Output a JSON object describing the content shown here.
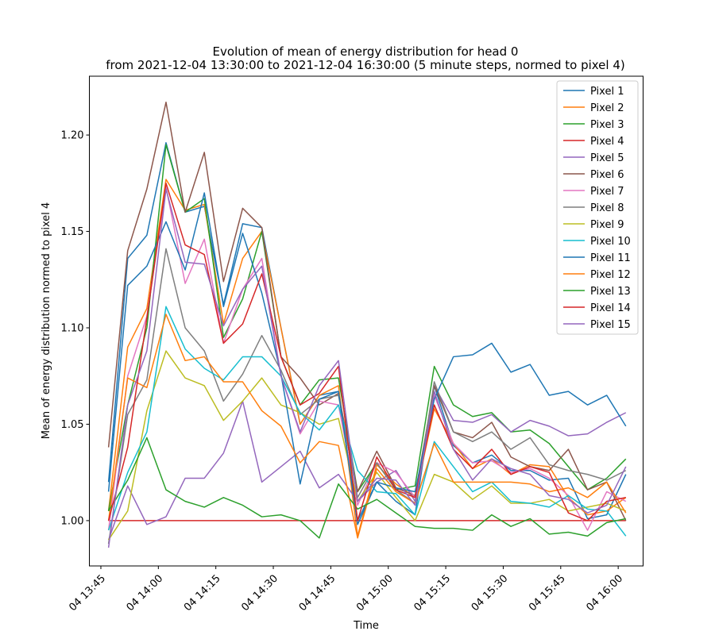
{
  "chart_data": {
    "type": "line",
    "title": "Evolution of mean of energy distribution for head 0",
    "subtitle": "from 2021-12-04 13:30:00 to 2021-12-04 16:30:00 (5 minute steps, normed to pixel 4)",
    "xlabel": "Time",
    "ylabel": "Mean of energy distribution normed to pixel 4",
    "x_unit": "minutes after 2021-12-04 13:30",
    "x": [
      17,
      22,
      27,
      32,
      37,
      42,
      47,
      52,
      57,
      62,
      67,
      72,
      77,
      82,
      87,
      92,
      97,
      102,
      107,
      112,
      117,
      122,
      127,
      132,
      137,
      142,
      147,
      152
    ],
    "xlim": [
      12,
      156.5
    ],
    "ylim": [
      0.9765,
      1.2305
    ],
    "xticks": [
      15,
      30,
      45,
      60,
      75,
      90,
      105,
      120,
      135,
      150
    ],
    "xtick_labels": [
      "04 13:45",
      "04 14:00",
      "04 14:15",
      "04 14:30",
      "04 14:45",
      "04 15:00",
      "04 15:15",
      "04 15:30",
      "04 15:45",
      "04 16:00"
    ],
    "yticks": [
      1.0,
      1.05,
      1.1,
      1.15,
      1.2
    ],
    "ytick_labels": [
      "1.00",
      "1.05",
      "1.10",
      "1.15",
      "1.20"
    ],
    "grid": false,
    "legend_position": "upper right",
    "series": [
      {
        "name": "Pixel 1",
        "color": "#1f77b4",
        "values": [
          1.02,
          1.136,
          1.148,
          1.196,
          1.16,
          1.163,
          1.112,
          1.154,
          1.152,
          1.1,
          1.05,
          1.065,
          1.067,
          1.0,
          1.02,
          1.01,
          1.003,
          1.07,
          1.039,
          1.03,
          1.034,
          1.026,
          1.026,
          1.021,
          1.022,
          1.001,
          1.003,
          1.024
        ]
      },
      {
        "name": "Pixel 2",
        "color": "#ff7f0e",
        "values": [
          1.005,
          1.09,
          1.11,
          1.177,
          1.161,
          1.164,
          1.102,
          1.136,
          1.15,
          1.1,
          1.05,
          1.065,
          1.07,
          0.992,
          1.029,
          1.019,
          1.012,
          1.058,
          1.04,
          1.027,
          1.032,
          1.024,
          1.029,
          1.028,
          1.012,
          1.003,
          1.005,
          1.012
        ]
      },
      {
        "name": "Pixel 3",
        "color": "#2ca02c",
        "values": [
          1.005,
          1.06,
          1.1,
          1.195,
          1.16,
          1.167,
          1.095,
          1.115,
          1.15,
          1.085,
          1.06,
          1.073,
          1.074,
          1.015,
          1.03,
          1.016,
          1.018,
          1.08,
          1.06,
          1.054,
          1.056,
          1.046,
          1.047,
          1.04,
          1.028,
          1.016,
          1.022,
          1.032
        ]
      },
      {
        "name": "Pixel 4",
        "color": "#d62728",
        "values": [
          1.0,
          1.0,
          1.0,
          1.0,
          1.0,
          1.0,
          1.0,
          1.0,
          1.0,
          1.0,
          1.0,
          1.0,
          1.0,
          1.0,
          1.0,
          1.0,
          1.0,
          1.0,
          1.0,
          1.0,
          1.0,
          1.0,
          1.0,
          1.0,
          1.0,
          1.0,
          1.0,
          1.0
        ]
      },
      {
        "name": "Pixel 5",
        "color": "#9467bd",
        "values": [
          0.99,
          1.018,
          0.998,
          1.002,
          1.022,
          1.022,
          1.035,
          1.062,
          1.02,
          1.028,
          1.036,
          1.017,
          1.024,
          1.01,
          1.02,
          1.026,
          1.01,
          1.07,
          1.052,
          1.051,
          1.055,
          1.046,
          1.052,
          1.049,
          1.044,
          1.045,
          1.051,
          1.056
        ]
      },
      {
        "name": "Pixel 6",
        "color": "#8c564b",
        "values": [
          1.038,
          1.14,
          1.172,
          1.217,
          1.16,
          1.191,
          1.124,
          1.162,
          1.152,
          1.085,
          1.074,
          1.06,
          1.066,
          1.015,
          1.036,
          1.017,
          1.013,
          1.07,
          1.046,
          1.043,
          1.051,
          1.033,
          1.028,
          1.026,
          1.037,
          1.016,
          1.02,
          1.0
        ]
      },
      {
        "name": "Pixel 7",
        "color": "#e377c2",
        "values": [
          0.995,
          1.075,
          1.106,
          1.173,
          1.123,
          1.146,
          1.092,
          1.12,
          1.136,
          1.075,
          1.045,
          1.062,
          1.06,
          1.008,
          1.03,
          1.025,
          1.012,
          1.065,
          1.04,
          1.03,
          1.031,
          1.025,
          1.027,
          1.022,
          1.013,
          0.995,
          1.015,
          1.01
        ]
      },
      {
        "name": "Pixel 8",
        "color": "#7f7f7f",
        "values": [
          0.988,
          1.055,
          1.073,
          1.141,
          1.1,
          1.088,
          1.062,
          1.076,
          1.096,
          1.078,
          1.055,
          1.063,
          1.065,
          1.012,
          1.03,
          1.016,
          1.009,
          1.072,
          1.046,
          1.041,
          1.046,
          1.037,
          1.043,
          1.029,
          1.026,
          1.024,
          1.021,
          1.026
        ]
      },
      {
        "name": "Pixel 9",
        "color": "#bcbd22",
        "values": [
          0.99,
          1.005,
          1.057,
          1.088,
          1.074,
          1.07,
          1.052,
          1.062,
          1.074,
          1.06,
          1.056,
          1.05,
          1.053,
          1.01,
          1.025,
          1.012,
          1.0,
          1.024,
          1.02,
          1.011,
          1.018,
          1.009,
          1.009,
          1.011,
          1.005,
          1.007,
          1.009,
          1.005
        ]
      },
      {
        "name": "Pixel 10",
        "color": "#17becf",
        "values": [
          0.995,
          1.025,
          1.046,
          1.111,
          1.089,
          1.079,
          1.073,
          1.085,
          1.085,
          1.075,
          1.056,
          1.047,
          1.06,
          1.026,
          1.015,
          1.014,
          1.003,
          1.041,
          1.028,
          1.015,
          1.02,
          1.01,
          1.009,
          1.007,
          1.013,
          1.006,
          1.005,
          0.992
        ]
      },
      {
        "name": "Pixel 11",
        "color": "#1f77b4",
        "values": [
          1.015,
          1.122,
          1.132,
          1.155,
          1.13,
          1.17,
          1.111,
          1.149,
          1.118,
          1.076,
          1.019,
          1.063,
          1.067,
          0.998,
          1.02,
          1.017,
          1.015,
          1.063,
          1.085,
          1.086,
          1.092,
          1.077,
          1.081,
          1.065,
          1.067,
          1.06,
          1.065,
          1.049
        ]
      },
      {
        "name": "Pixel 12",
        "color": "#ff7f0e",
        "values": [
          1.0,
          1.074,
          1.069,
          1.107,
          1.083,
          1.085,
          1.072,
          1.072,
          1.057,
          1.049,
          1.03,
          1.041,
          1.039,
          0.991,
          1.027,
          1.015,
          1.009,
          1.04,
          1.02,
          1.02,
          1.02,
          1.02,
          1.019,
          1.015,
          1.017,
          1.012,
          1.02,
          1.004
        ]
      },
      {
        "name": "Pixel 13",
        "color": "#2ca02c",
        "values": [
          1.005,
          1.021,
          1.043,
          1.016,
          1.01,
          1.007,
          1.012,
          1.008,
          1.002,
          1.003,
          1.0,
          0.991,
          1.019,
          1.006,
          1.011,
          1.004,
          0.997,
          0.996,
          0.996,
          0.995,
          1.003,
          0.997,
          1.001,
          0.993,
          0.994,
          0.992,
          0.999,
          1.001
        ]
      },
      {
        "name": "Pixel 14",
        "color": "#d62728",
        "values": [
          1.0,
          1.038,
          1.105,
          1.175,
          1.143,
          1.138,
          1.092,
          1.102,
          1.128,
          1.085,
          1.06,
          1.066,
          1.08,
          1.0,
          1.033,
          1.016,
          1.012,
          1.06,
          1.037,
          1.027,
          1.037,
          1.024,
          1.028,
          1.025,
          1.004,
          1.0,
          1.01,
          1.012
        ]
      },
      {
        "name": "Pixel 15",
        "color": "#9467bd",
        "values": [
          0.986,
          1.06,
          1.088,
          1.172,
          1.134,
          1.133,
          1.101,
          1.12,
          1.132,
          1.075,
          1.046,
          1.07,
          1.083,
          1.01,
          1.022,
          1.021,
          1.008,
          1.067,
          1.037,
          1.021,
          1.032,
          1.027,
          1.024,
          1.013,
          1.011,
          1.004,
          1.008,
          1.028
        ]
      }
    ]
  }
}
